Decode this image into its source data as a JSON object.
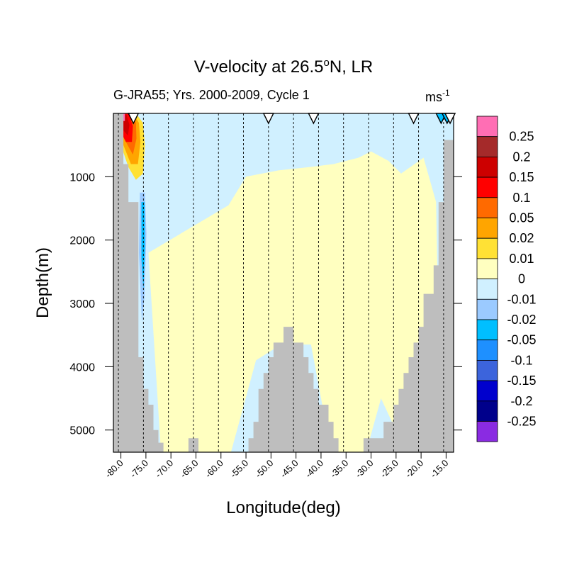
{
  "chart_data": {
    "type": "heatmap",
    "title_main": "V-velocity at 26.5",
    "title_sup": "o",
    "title_tail": "N, LR",
    "subtitle": "G-JRA55; Yrs. 2000-2009, Cycle 1",
    "units_main": "ms",
    "units_sup": "-1",
    "xlabel": "Longitude(deg)",
    "ylabel": "Depth(m)",
    "xlim": [
      -81.5,
      -13.5
    ],
    "ylim": [
      5350,
      0
    ],
    "x_ticks": [
      -80,
      -75,
      -70,
      -65,
      -60,
      -55,
      -50,
      -45,
      -40,
      -35,
      -30,
      -25,
      -20,
      -15
    ],
    "x_tick_labels": [
      "-80.0",
      "-75.0",
      "-70.0",
      "-65.0",
      "-60.0",
      "-55.0",
      "-50.0",
      "-45.0",
      "-40.0",
      "-35.0",
      "-30.0",
      "-25.0",
      "-20.0",
      "-15.0"
    ],
    "y_ticks": [
      1000,
      2000,
      3000,
      4000,
      5000
    ],
    "y_tick_labels": [
      "1000",
      "2000",
      "3000",
      "4000",
      "5000"
    ],
    "section_lines_lon": [
      -80.5,
      -75.5,
      -70.5,
      -65.5,
      -60.5,
      -55.5,
      -50.5,
      -45.5,
      -40.5,
      -35.5,
      -30.5,
      -25.5,
      -20.5,
      -15.5
    ],
    "station_markers_lon": [
      -77.5,
      -50.5,
      -41.5,
      -21.5,
      -16.0,
      -14.8,
      -14.2
    ],
    "station_marker_colors": [
      "#ffffff",
      "#ffffff",
      "#ffffff",
      "#ffffff",
      "#00bfff",
      "#00bfff",
      "#ffffff"
    ],
    "colorbar": {
      "labels": [
        "0.25",
        "0.2",
        "0.15",
        "0.1",
        "0.05",
        "0.02",
        "0.01",
        "0",
        "-0.01",
        "-0.02",
        "-0.05",
        "-0.1",
        "-0.15",
        "-0.2",
        "-0.25"
      ],
      "colors": [
        "#ff6eb4",
        "#a52a2a",
        "#cd0000",
        "#ff0000",
        "#ff6a00",
        "#ffa500",
        "#ffe135",
        "#ffffc0",
        "#d0f0ff",
        "#9bcaff",
        "#00bfff",
        "#1e90ff",
        "#3c64dc",
        "#0000cd",
        "#00008b",
        "#8a2be2"
      ]
    },
    "background_value_color": "#d0f0ff",
    "land_color": "#bebebe",
    "bathymetry": {
      "lon": [
        -81.5,
        -80.5,
        -79.5,
        -78.5,
        -77.5,
        -76.5,
        -75.5,
        -74.5,
        -73.5,
        -72.5,
        -71.5,
        -70.5,
        -69.5,
        -68.5,
        -67.5,
        -66.5,
        -65.5,
        -64.5,
        -63.5,
        -62.5,
        -61.5,
        -60.5,
        -59.5,
        -58.5,
        -57.5,
        -56.5,
        -55.5,
        -54.5,
        -53.5,
        -52.5,
        -51.5,
        -50.5,
        -49.5,
        -48.5,
        -47.5,
        -46.5,
        -45.5,
        -44.5,
        -43.5,
        -42.5,
        -41.5,
        -40.5,
        -39.5,
        -38.5,
        -37.5,
        -36.5,
        -35.5,
        -34.5,
        -33.5,
        -32.5,
        -31.5,
        -30.5,
        -29.5,
        -28.5,
        -27.5,
        -26.5,
        -25.5,
        -24.5,
        -23.5,
        -22.5,
        -21.5,
        -20.5,
        -19.5,
        -18.5,
        -17.5,
        -16.5,
        -15.5,
        -14.5,
        -13.5
      ],
      "depth": [
        0,
        0,
        800,
        1400,
        1400,
        3850,
        4350,
        4600,
        5000,
        5200,
        5400,
        5400,
        5400,
        5400,
        5400,
        5130,
        5130,
        5400,
        5400,
        5400,
        5400,
        5400,
        5400,
        5400,
        5400,
        5400,
        5400,
        5130,
        4870,
        4350,
        4100,
        3850,
        3620,
        3620,
        3370,
        3370,
        3620,
        3620,
        3850,
        4100,
        4350,
        4600,
        4600,
        4870,
        5130,
        5400,
        5400,
        5400,
        5400,
        5400,
        5130,
        5130,
        5130,
        5130,
        4870,
        4870,
        4600,
        4350,
        4100,
        3850,
        3620,
        3370,
        2850,
        2850,
        2400,
        1400,
        420,
        420,
        420
      ]
    },
    "contour_regions": [
      {
        "band": "0",
        "desc": "central yellow region",
        "lon": [
          -74.5,
          -58.5,
          -55,
          -48.5,
          -42.5,
          -37.5,
          -32.5,
          -30,
          -26.5,
          -24,
          -19.5,
          -17,
          -16.5,
          -19,
          -23,
          -28,
          -31,
          -33,
          -38,
          -42,
          -48,
          -53,
          -58,
          -64,
          -72
        ],
        "depth": [
          2200,
          1450,
          1000,
          900,
          850,
          800,
          700,
          600,
          750,
          950,
          700,
          1400,
          3600,
          5350,
          5350,
          4500,
          5350,
          5350,
          5350,
          3650,
          3650,
          3900,
          5350,
          5350,
          5350
        ]
      },
      {
        "band": "0.01",
        "desc": "western boundary current gold",
        "lon": [
          -81,
          -77,
          -75.6,
          -75.2,
          -75.6,
          -77,
          -78.5,
          -80
        ],
        "depth": [
          0,
          0,
          150,
          500,
          950,
          1050,
          850,
          500
        ]
      },
      {
        "band": "0.02",
        "desc": "western boundary current orange",
        "lon": [
          -81,
          -77.5,
          -76.4,
          -76.1,
          -76.6,
          -78,
          -79.5
        ],
        "depth": [
          0,
          0,
          150,
          450,
          800,
          800,
          500
        ]
      },
      {
        "band": "0.05",
        "desc": "western boundary current dark orange",
        "lon": [
          -81,
          -78,
          -77,
          -76.9,
          -77.6,
          -79
        ],
        "depth": [
          0,
          0,
          150,
          400,
          650,
          450
        ]
      },
      {
        "band": "0.1",
        "desc": "western boundary current red",
        "lon": [
          -80.7,
          -78.4,
          -77.6,
          -77.8,
          -79,
          -80.3
        ],
        "depth": [
          0,
          0,
          200,
          450,
          450,
          250
        ]
      },
      {
        "band": "0.15",
        "desc": "western boundary current crimson",
        "lon": [
          -80.4,
          -78.9,
          -78.3,
          -78.6,
          -79.7
        ],
        "depth": [
          20,
          20,
          180,
          350,
          250
        ]
      },
      {
        "band": "0.25",
        "desc": "western boundary current pink",
        "lon": [
          -80.6,
          -79.2,
          -79.2,
          -80.6
        ],
        "depth": [
          0,
          0,
          120,
          120
        ]
      },
      {
        "band": "-0.01",
        "desc": "DWBC light blue",
        "lon": [
          -76.5,
          -75,
          -74.6,
          -75,
          -75.6,
          -76.4,
          -76.9
        ],
        "depth": [
          1150,
          1150,
          1900,
          3000,
          3450,
          3300,
          2200
        ]
      },
      {
        "band": "-0.02",
        "desc": "DWBC cyan",
        "lon": [
          -76.2,
          -75.2,
          -74.9,
          -75.3,
          -75.8,
          -76.4
        ],
        "depth": [
          1250,
          1250,
          1900,
          2900,
          3300,
          2200
        ]
      },
      {
        "band": "-0.05",
        "desc": "DWBC blue",
        "lon": [
          -75.9,
          -75.3,
          -75.2,
          -75.5,
          -75.9
        ],
        "depth": [
          1400,
          1400,
          2100,
          2800,
          2300
        ]
      },
      {
        "band": "-0.01",
        "desc": "near-surface eastern blue",
        "lon": [
          -53,
          -35,
          -25,
          -17,
          -15,
          -15,
          -20,
          -30,
          -40,
          -53
        ],
        "depth": [
          20,
          30,
          40,
          20,
          40,
          150,
          180,
          120,
          80,
          70
        ]
      }
    ]
  }
}
